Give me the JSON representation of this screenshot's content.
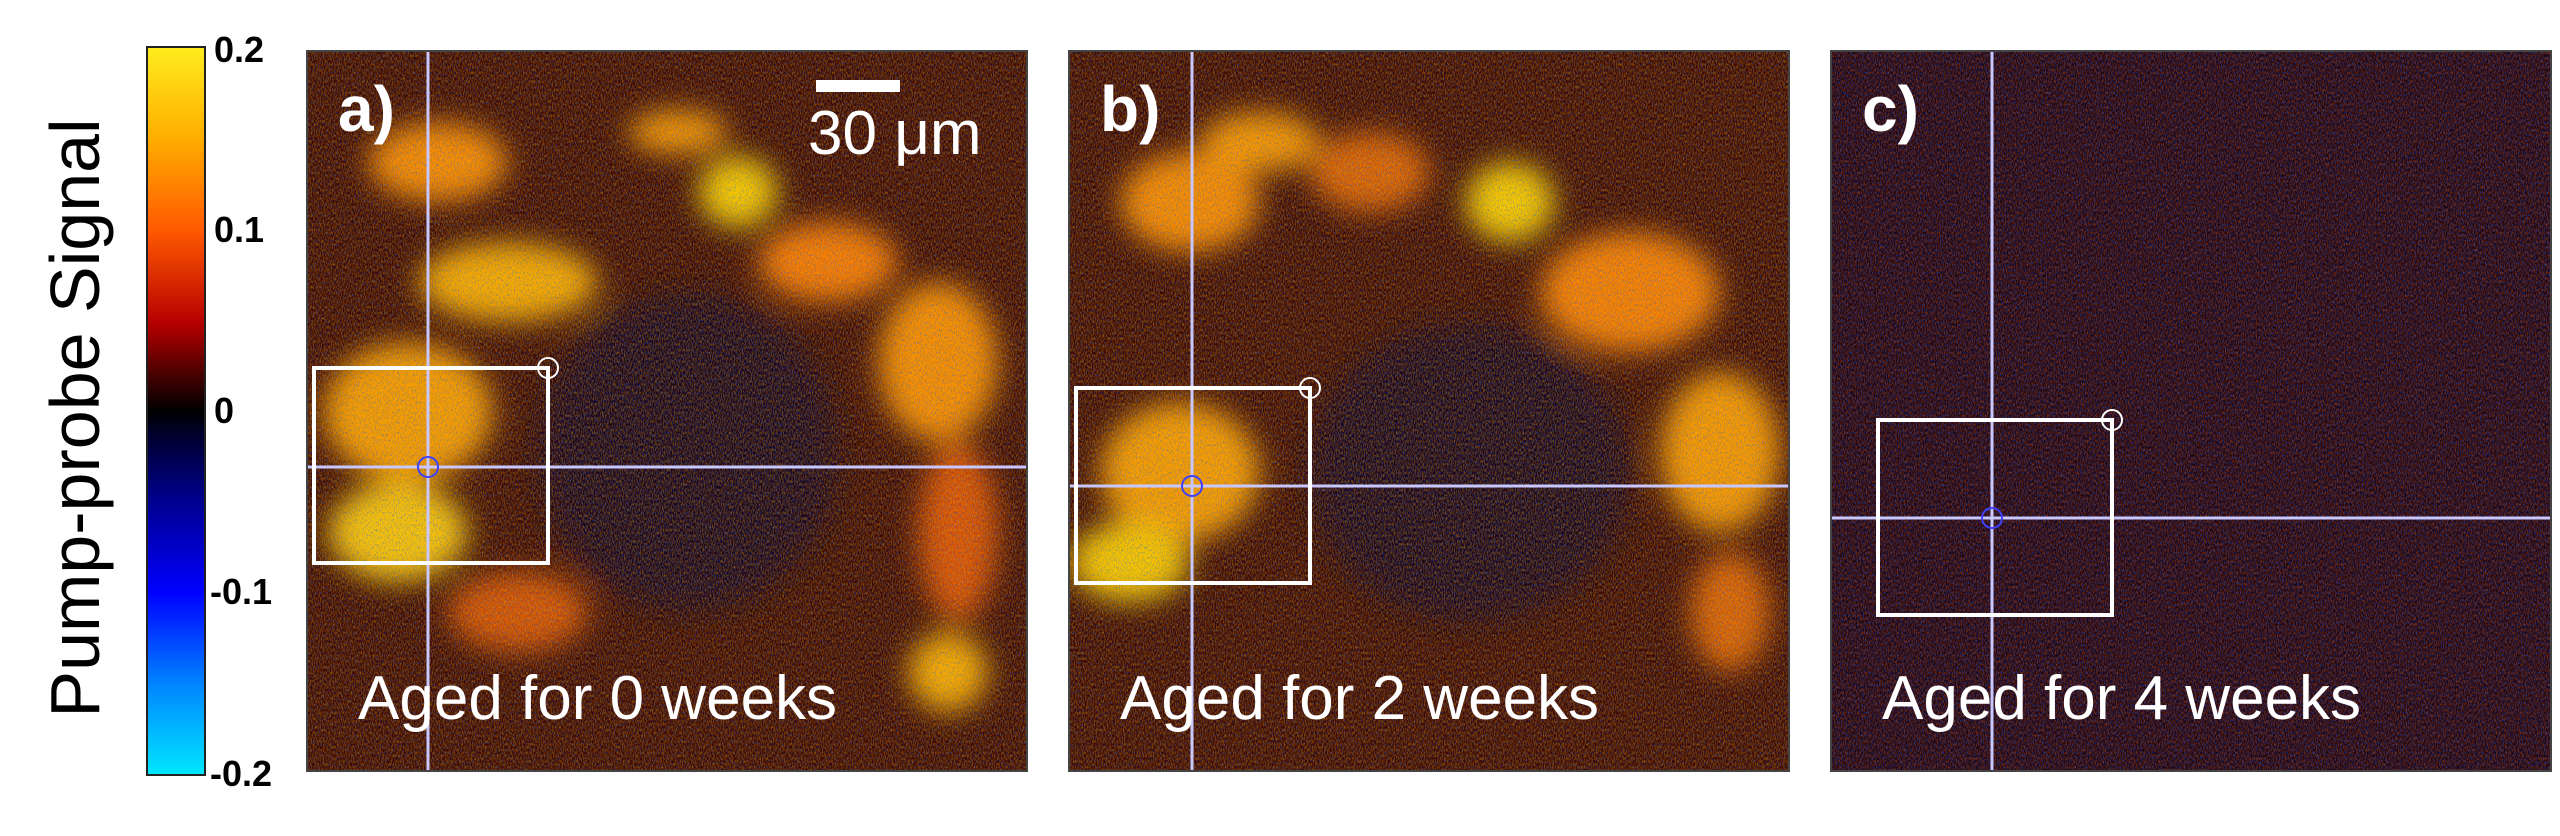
{
  "figure": {
    "y_axis_label": "Pump-probe Signal",
    "colorbar": {
      "ticks": [
        "0.2",
        "0.1",
        "0",
        "-0.1",
        "-0.2"
      ],
      "max": 0.2,
      "min": -0.2
    },
    "scale_bar_label": "30 μm",
    "panels": [
      {
        "label": "a)",
        "caption": "Aged for 0 weeks",
        "signal_level": "high"
      },
      {
        "label": "b)",
        "caption": "Aged for 2 weeks",
        "signal_level": "high"
      },
      {
        "label": "c)",
        "caption": "Aged for 4 weeks",
        "signal_level": "low"
      }
    ]
  }
}
